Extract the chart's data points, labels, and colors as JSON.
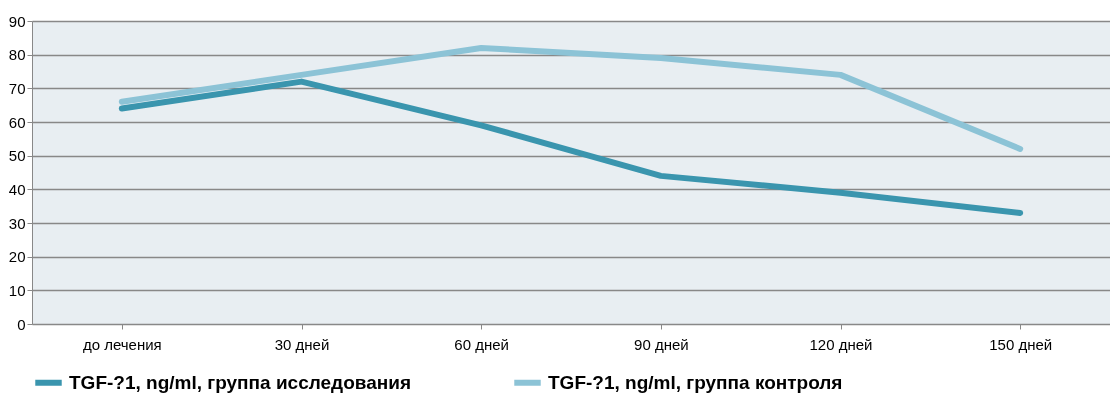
{
  "chart_data": {
    "type": "line",
    "categories": [
      "до лечения",
      "30 дней",
      "60 дней",
      "90 дней",
      "120 дней",
      "150 дней"
    ],
    "series": [
      {
        "name": "TGF-?1, ng/ml, группа исследования",
        "color": "#3a95ae",
        "values": [
          64,
          72,
          59,
          44,
          39,
          33
        ]
      },
      {
        "name": "TGF-?1, ng/ml, группа контроля",
        "color": "#8cc3d6",
        "values": [
          66,
          74,
          82,
          79,
          74,
          52
        ]
      }
    ],
    "ylim": [
      0,
      90
    ],
    "yticks": [
      0,
      10,
      20,
      30,
      40,
      50,
      60,
      70,
      80,
      90
    ],
    "grid": "y",
    "legend": "bottom",
    "marker": "none",
    "line_style": "solid"
  }
}
